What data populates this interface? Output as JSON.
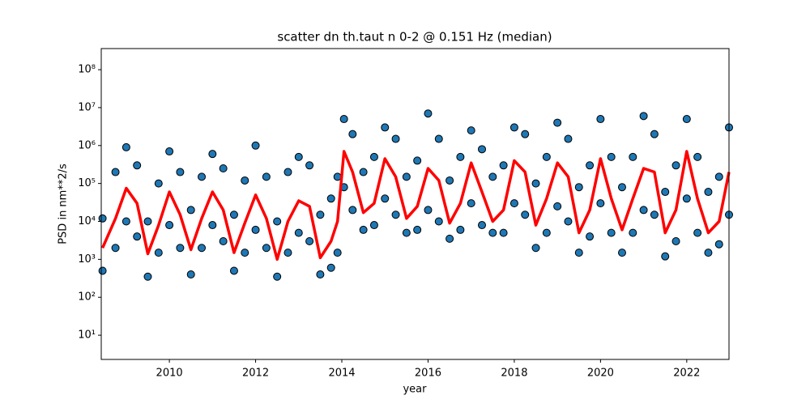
{
  "chart_data": {
    "type": "scatter",
    "title": "scatter dn th.taut n 0-2 @ 0.151 Hz (median)",
    "x_label": "year",
    "y_label": "PSD in nm**2/s",
    "xlim": [
      2008.42,
      2022.98
    ],
    "xticks": [
      2010,
      2012,
      2014,
      2016,
      2018,
      2020,
      2022
    ],
    "ylim": [
      2.3,
      360000000
    ],
    "log_y": true,
    "yticks": [
      {
        "value": 10,
        "label": "10¹"
      },
      {
        "value": 100,
        "label": "10²"
      },
      {
        "value": 1000,
        "label": "10³"
      },
      {
        "value": 10000,
        "label": "10⁴"
      },
      {
        "value": 100000,
        "label": "10⁵"
      },
      {
        "value": 1000000,
        "label": "10⁶"
      },
      {
        "value": 10000000,
        "label": "10⁷"
      },
      {
        "value": 100000000,
        "label": "10⁸"
      }
    ],
    "scatter": {
      "color": "#1f77b4",
      "x": [
        2008.45,
        2008.75,
        2009.0,
        2009.25,
        2009.5,
        2009.75,
        2010.0,
        2010.25,
        2010.5,
        2010.75,
        2011.0,
        2011.25,
        2011.5,
        2011.75,
        2012.0,
        2012.25,
        2012.5,
        2012.75,
        2013.0,
        2013.25,
        2013.5,
        2013.75,
        2013.9,
        2014.05,
        2014.25,
        2014.5,
        2014.75,
        2015.0,
        2015.25,
        2015.5,
        2015.75,
        2016.0,
        2016.25,
        2016.5,
        2016.75,
        2017.0,
        2017.25,
        2017.5,
        2017.75,
        2018.0,
        2018.25,
        2018.5,
        2018.75,
        2019.0,
        2019.25,
        2019.5,
        2019.75,
        2020.0,
        2020.25,
        2020.5,
        2020.75,
        2021.0,
        2021.25,
        2021.5,
        2021.75,
        2022.0,
        2022.25,
        2022.5,
        2022.75,
        2022.98,
        2008.45,
        2008.75,
        2009.0,
        2009.25,
        2009.5,
        2009.75,
        2010.0,
        2010.25,
        2010.5,
        2010.75,
        2011.0,
        2011.25,
        2011.5,
        2011.75,
        2012.0,
        2012.25,
        2012.5,
        2012.75,
        2013.0,
        2013.25,
        2013.5,
        2013.75,
        2013.9,
        2014.05,
        2014.25,
        2014.5,
        2014.75,
        2015.0,
        2015.25,
        2015.5,
        2015.75,
        2016.0,
        2016.25,
        2016.5,
        2016.75,
        2017.0,
        2017.25,
        2017.5,
        2017.75,
        2018.0,
        2018.25,
        2018.5,
        2018.75,
        2019.0,
        2019.25,
        2019.5,
        2019.75,
        2020.0,
        2020.25,
        2020.5,
        2020.75,
        2021.0,
        2021.25,
        2021.5,
        2021.75,
        2022.0,
        2022.25,
        2022.5,
        2022.75,
        2022.98
      ],
      "y": [
        12000,
        200000,
        900000,
        300000,
        10000,
        100000,
        700000,
        200000,
        20000,
        150000,
        600000,
        250000,
        15000,
        120000,
        1000000,
        150000,
        10000,
        200000,
        500000,
        300000,
        15000,
        40000,
        150000,
        5000000,
        2000000,
        200000,
        500000,
        3000000,
        1500000,
        150000,
        400000,
        7000000,
        1500000,
        120000,
        500000,
        2500000,
        800000,
        150000,
        300000,
        3000000,
        2000000,
        100000,
        500000,
        4000000,
        1500000,
        80000,
        300000,
        5000000,
        500000,
        80000,
        500000,
        6000000,
        2000000,
        60000,
        300000,
        5000000,
        500000,
        60000,
        150000,
        3000000,
        500,
        2000,
        10000,
        4000,
        350,
        1500,
        8000,
        2000,
        400,
        2000,
        8000,
        3000,
        500,
        1500,
        6000,
        2000,
        350,
        1500,
        5000,
        3000,
        400,
        600,
        1500,
        80000,
        20000,
        6000,
        8000,
        40000,
        15000,
        5000,
        6000,
        20000,
        10000,
        3500,
        6000,
        30000,
        8000,
        5000,
        5000,
        30000,
        15000,
        2000,
        5000,
        25000,
        10000,
        1500,
        4000,
        30000,
        5000,
        1500,
        5000,
        20000,
        15000,
        1200,
        3000,
        40000,
        5000,
        1500,
        2500,
        15000
      ]
    },
    "line": {
      "color": "#ff0000",
      "x": [
        2008.45,
        2008.75,
        2009.0,
        2009.25,
        2009.5,
        2009.75,
        2010.0,
        2010.25,
        2010.5,
        2010.75,
        2011.0,
        2011.25,
        2011.5,
        2011.75,
        2012.0,
        2012.25,
        2012.5,
        2012.75,
        2013.0,
        2013.25,
        2013.5,
        2013.75,
        2013.9,
        2014.05,
        2014.25,
        2014.5,
        2014.75,
        2015.0,
        2015.25,
        2015.5,
        2015.75,
        2016.0,
        2016.25,
        2016.5,
        2016.75,
        2017.0,
        2017.25,
        2017.5,
        2017.75,
        2018.0,
        2018.25,
        2018.5,
        2018.75,
        2019.0,
        2019.25,
        2019.5,
        2019.75,
        2020.0,
        2020.25,
        2020.5,
        2020.75,
        2021.0,
        2021.25,
        2021.5,
        2021.75,
        2022.0,
        2022.25,
        2022.5,
        2022.75,
        2022.98
      ],
      "y": [
        2000,
        12000,
        75000,
        30000,
        1400,
        8000,
        60000,
        15000,
        1800,
        12000,
        60000,
        20000,
        1500,
        9000,
        50000,
        12000,
        1000,
        10000,
        35000,
        25000,
        1100,
        3000,
        10000,
        700000,
        200000,
        17000,
        30000,
        450000,
        150000,
        12000,
        25000,
        250000,
        120000,
        9000,
        30000,
        350000,
        60000,
        10000,
        20000,
        400000,
        200000,
        8000,
        40000,
        350000,
        150000,
        5000,
        20000,
        450000,
        40000,
        6000,
        40000,
        250000,
        200000,
        5000,
        20000,
        700000,
        40000,
        5000,
        10000,
        200000
      ]
    }
  }
}
